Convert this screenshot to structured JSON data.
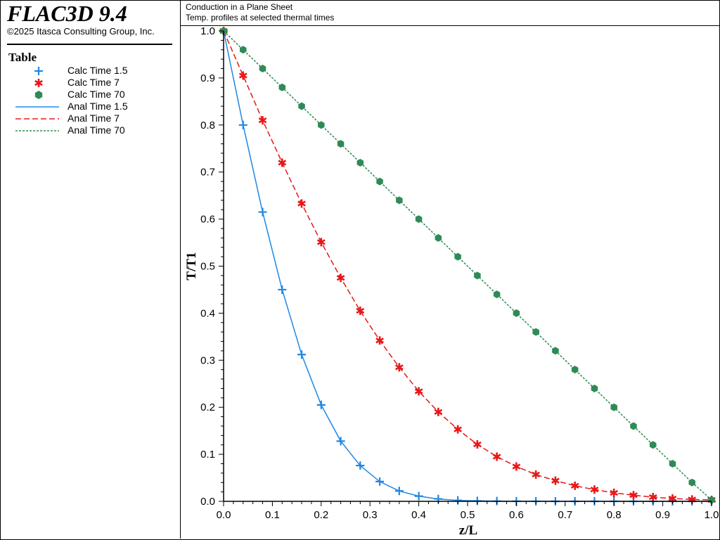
{
  "app": {
    "title": "FLAC3D 9.4",
    "copyright": "©2025 Itasca Consulting Group, Inc."
  },
  "legend": {
    "heading": "Table",
    "items": [
      {
        "label": "Calc Time 1.5",
        "symbol": "plus",
        "color": "#1e88e5"
      },
      {
        "label": "Calc Time 7",
        "symbol": "asterisk",
        "color": "#e81818"
      },
      {
        "label": "Calc Time 70",
        "symbol": "circle",
        "color": "#2e8b57"
      },
      {
        "label": "Anal Time 1.5",
        "symbol": "solid",
        "color": "#1e88e5"
      },
      {
        "label": "Anal Time 7",
        "symbol": "dashed",
        "color": "#e81818"
      },
      {
        "label": "Anal Time 70",
        "symbol": "dotted",
        "color": "#2e8b57"
      }
    ]
  },
  "plot": {
    "title": "Conduction in a Plane Sheet",
    "subtitle": "Temp. profiles at selected thermal times"
  },
  "chart_data": {
    "type": "line",
    "xlabel": "z/L",
    "ylabel": "T/T1",
    "xlim": [
      0.0,
      1.0
    ],
    "ylim": [
      0.0,
      1.0
    ],
    "x_ticks": [
      "0.0",
      "0.1",
      "0.2",
      "0.3",
      "0.4",
      "0.5",
      "0.6",
      "0.7",
      "0.8",
      "0.9",
      "1.0"
    ],
    "y_ticks": [
      "0.0",
      "0.1",
      "0.2",
      "0.3",
      "0.4",
      "0.5",
      "0.6",
      "0.7",
      "0.8",
      "0.9",
      "1.0"
    ],
    "x": [
      0.0,
      0.04,
      0.08,
      0.12,
      0.16,
      0.2,
      0.24,
      0.28,
      0.32,
      0.36,
      0.4,
      0.44,
      0.48,
      0.52,
      0.56,
      0.6,
      0.64,
      0.68,
      0.72,
      0.76,
      0.8,
      0.84,
      0.88,
      0.92,
      0.96,
      1.0
    ],
    "series": [
      {
        "name": "Calc Time 1.5",
        "kind": "marker",
        "symbol": "plus",
        "color": "#1e88e5",
        "values": [
          1.0,
          0.8,
          0.615,
          0.45,
          0.312,
          0.205,
          0.128,
          0.076,
          0.042,
          0.022,
          0.011,
          0.005,
          0.002,
          0.001,
          0.0005,
          0.0002,
          0.0001,
          0.0,
          0.0,
          0.0,
          0.0,
          0.0,
          0.0,
          0.0,
          0.0,
          0.0
        ]
      },
      {
        "name": "Calc Time 7",
        "kind": "marker",
        "symbol": "asterisk",
        "color": "#e81818",
        "values": [
          1.0,
          0.905,
          0.81,
          0.72,
          0.633,
          0.551,
          0.475,
          0.405,
          0.342,
          0.285,
          0.234,
          0.19,
          0.153,
          0.121,
          0.095,
          0.074,
          0.057,
          0.044,
          0.033,
          0.025,
          0.018,
          0.013,
          0.009,
          0.006,
          0.004,
          0.003
        ]
      },
      {
        "name": "Calc Time 70",
        "kind": "marker",
        "symbol": "circle",
        "color": "#2e8b57",
        "values": [
          1.0,
          0.96,
          0.92,
          0.88,
          0.84,
          0.8,
          0.76,
          0.72,
          0.68,
          0.64,
          0.6,
          0.56,
          0.52,
          0.48,
          0.44,
          0.4,
          0.36,
          0.32,
          0.28,
          0.24,
          0.2,
          0.16,
          0.12,
          0.08,
          0.04,
          0.003
        ]
      },
      {
        "name": "Anal Time 1.5",
        "kind": "line",
        "dash": "solid",
        "color": "#1e88e5",
        "values": [
          1.0,
          0.8,
          0.615,
          0.45,
          0.312,
          0.205,
          0.128,
          0.076,
          0.042,
          0.022,
          0.011,
          0.005,
          0.002,
          0.001,
          0.0005,
          0.0002,
          0.0001,
          0.0,
          0.0,
          0.0,
          0.0,
          0.0,
          0.0,
          0.0,
          0.0,
          0.0
        ]
      },
      {
        "name": "Anal Time 7",
        "kind": "line",
        "dash": "dashed",
        "color": "#e81818",
        "values": [
          1.0,
          0.905,
          0.81,
          0.72,
          0.633,
          0.551,
          0.475,
          0.405,
          0.342,
          0.285,
          0.234,
          0.19,
          0.153,
          0.121,
          0.095,
          0.074,
          0.057,
          0.044,
          0.033,
          0.025,
          0.018,
          0.013,
          0.009,
          0.006,
          0.004,
          0.003
        ]
      },
      {
        "name": "Anal Time 70",
        "kind": "line",
        "dash": "dotted",
        "color": "#2e8b57",
        "values": [
          1.0,
          0.96,
          0.92,
          0.88,
          0.84,
          0.8,
          0.76,
          0.72,
          0.68,
          0.64,
          0.6,
          0.56,
          0.52,
          0.48,
          0.44,
          0.4,
          0.36,
          0.32,
          0.28,
          0.24,
          0.2,
          0.16,
          0.12,
          0.08,
          0.04,
          0.003
        ]
      }
    ]
  }
}
